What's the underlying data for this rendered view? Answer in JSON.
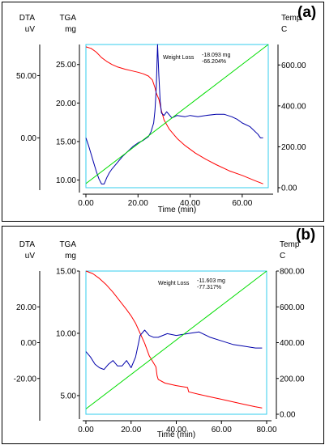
{
  "chart_data": [
    {
      "type": "line",
      "panel_label": "(a)",
      "axes": {
        "dta": {
          "name": "DTA",
          "unit": "uV",
          "ticks": [
            50.0,
            0.0
          ],
          "tick_labels": [
            "50.00",
            "0.00"
          ],
          "ylim": [
            -40,
            75
          ]
        },
        "tga": {
          "name": "TGA",
          "unit": "mg",
          "ticks": [
            25.0,
            20.0,
            15.0,
            10.0
          ],
          "tick_labels": [
            "25.00",
            "20.00",
            "15.00",
            "10.00"
          ],
          "ylim": [
            9,
            27.6
          ]
        },
        "temp": {
          "name": "Temp",
          "unit": "C",
          "ticks": [
            600.0,
            400.0,
            200.0,
            0.0
          ],
          "tick_labels": [
            "600.00",
            "400.00",
            "200.00",
            "0.00"
          ],
          "ylim": [
            0,
            700
          ]
        },
        "x": {
          "label": "Time (min)",
          "ticks": [
            0,
            20,
            40,
            60
          ],
          "tick_labels": [
            "0.00",
            "20.00",
            "40.00",
            "60.00"
          ],
          "xlim": [
            0,
            70
          ]
        }
      },
      "annotation": {
        "title": "Weight Loss",
        "values": [
          "-18.093 mg",
          "-66.204%"
        ]
      },
      "series": [
        {
          "axis": "tga",
          "color": "#ff0000",
          "x": [
            0,
            2,
            4,
            6,
            8,
            10,
            12,
            15,
            18,
            20,
            22,
            24,
            25.5,
            26.5,
            27,
            28,
            29,
            30,
            32,
            35,
            38,
            42,
            46,
            50,
            55,
            60,
            65,
            68
          ],
          "y": [
            27.3,
            27.1,
            26.6,
            25.9,
            25.4,
            25.0,
            24.7,
            24.4,
            24.15,
            24.0,
            23.8,
            23.5,
            23.0,
            22.0,
            21.3,
            20.5,
            19.0,
            17.8,
            16.6,
            15.4,
            14.5,
            13.5,
            12.7,
            12.0,
            11.2,
            10.6,
            9.9,
            9.5
          ]
        },
        {
          "axis": "dta",
          "color": "#0000aa",
          "x": [
            0,
            1,
            2,
            3,
            4,
            5,
            6,
            7,
            8,
            9,
            10,
            12,
            14,
            16,
            18,
            20,
            22,
            24,
            25,
            26,
            26.5,
            27,
            27.5,
            28,
            28.5,
            29,
            30,
            31,
            33,
            35,
            38,
            40,
            43,
            46,
            50,
            53,
            56,
            58,
            60,
            63,
            66,
            67,
            68
          ],
          "y": [
            0,
            -6,
            -13,
            -20,
            -27,
            -33,
            -37,
            -37,
            -32,
            -28,
            -25,
            -20,
            -15,
            -11,
            -7,
            -4,
            -2,
            1,
            5,
            12,
            22,
            40,
            75,
            50,
            30,
            20,
            18,
            21,
            16,
            18,
            17,
            18,
            17,
            18,
            19,
            19,
            17,
            15,
            12,
            9,
            3,
            0,
            0
          ]
        },
        {
          "axis": "temp",
          "color": "#00dd00",
          "x": [
            0,
            70
          ],
          "y": [
            20,
            700
          ]
        }
      ]
    },
    {
      "type": "line",
      "panel_label": "(b)",
      "axes": {
        "dta": {
          "name": "DTA",
          "unit": "uV",
          "ticks": [
            20.0,
            0.0,
            -20.0
          ],
          "tick_labels": [
            "20.00",
            "0.00",
            "-20.00"
          ],
          "ylim": [
            -40,
            40
          ]
        },
        "tga": {
          "name": "TGA",
          "unit": "mg",
          "ticks": [
            15.0,
            10.0,
            5.0
          ],
          "tick_labels": [
            "15.00",
            "10.00",
            "5.00"
          ],
          "ylim": [
            3.5,
            15
          ]
        },
        "temp": {
          "name": "Temp",
          "unit": "C",
          "ticks": [
            800.0,
            600.0,
            400.0,
            200.0,
            0.0
          ],
          "tick_labels": [
            "800.00",
            "600.00",
            "400.00",
            "200.00",
            "0.00"
          ],
          "ylim": [
            0,
            800
          ]
        },
        "x": {
          "label": "Time (min)",
          "ticks": [
            0,
            20,
            40,
            60,
            80
          ],
          "tick_labels": [
            "0.00",
            "20.00",
            "40.00",
            "60.00",
            "80.00"
          ],
          "xlim": [
            0,
            80
          ]
        }
      },
      "annotation": {
        "title": "Weight Loss",
        "values": [
          "-11.603 mg",
          "-77.317%"
        ]
      },
      "series": [
        {
          "axis": "tga",
          "color": "#ff0000",
          "x": [
            0,
            3,
            6,
            9,
            12,
            15,
            18,
            20,
            22,
            24,
            26,
            28,
            30,
            31,
            31.5,
            32,
            35,
            40,
            45,
            45.5,
            50,
            55,
            60,
            65,
            70,
            75,
            78
          ],
          "y": [
            15.0,
            14.8,
            14.4,
            13.9,
            13.3,
            12.6,
            11.9,
            11.4,
            10.8,
            10.0,
            9.2,
            8.2,
            7.6,
            7.3,
            6.6,
            6.3,
            6.0,
            5.8,
            5.65,
            5.3,
            5.1,
            4.9,
            4.7,
            4.5,
            4.3,
            4.1,
            4.0
          ]
        },
        {
          "axis": "dta",
          "color": "#0000aa",
          "x": [
            0,
            2,
            4,
            6,
            8,
            10,
            12,
            14,
            16,
            18,
            20,
            22,
            24,
            26,
            28,
            30,
            32,
            34,
            36,
            40,
            45,
            50,
            55,
            60,
            65,
            70,
            75,
            78
          ],
          "y": [
            -5,
            -8,
            -12,
            -14,
            -15,
            -12,
            -10,
            -13,
            -13,
            -10,
            -14,
            -8,
            4,
            7,
            4,
            3,
            3,
            4,
            5,
            4,
            5,
            6,
            3,
            1,
            -1,
            -2,
            -3,
            -3
          ]
        },
        {
          "axis": "temp",
          "color": "#00dd00",
          "x": [
            0,
            80
          ],
          "y": [
            30,
            800
          ]
        }
      ]
    }
  ]
}
